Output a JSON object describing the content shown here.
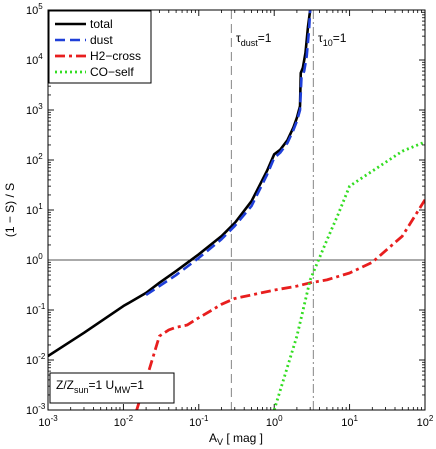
{
  "chart_data": {
    "type": "line",
    "title": "",
    "xlabel": "A",
    "xlabel_sub": "V",
    "xlabel_unit": " [ mag ]",
    "ylabel": "(1 − S) / S",
    "xscale": "log",
    "yscale": "log",
    "xlim": [
      0.001,
      100
    ],
    "ylim": [
      0.001,
      100000
    ],
    "x_tick_values": [
      0.001,
      0.01,
      0.1,
      1,
      10,
      100
    ],
    "x_tick_exponents": [
      "-3",
      "-2",
      "-1",
      "0",
      "1",
      "2"
    ],
    "y_tick_values": [
      0.001,
      0.01,
      0.1,
      1,
      10,
      100,
      1000,
      10000,
      100000
    ],
    "y_tick_exponents": [
      "-3",
      "-2",
      "-1",
      "0",
      "1",
      "2",
      "3",
      "4",
      "5"
    ],
    "tick_base": "10",
    "legend_position": "top-left",
    "series": [
      {
        "name": "total",
        "color": "#000000",
        "style": "solid",
        "x": [
          0.001,
          0.003,
          0.01,
          0.02,
          0.03,
          0.05,
          0.1,
          0.2,
          0.3,
          0.5,
          0.8,
          1.0,
          1.2,
          1.5,
          1.8,
          2.0,
          2.2,
          2.25,
          2.4,
          2.6,
          2.8,
          3.0
        ],
        "y": [
          0.012,
          0.035,
          0.12,
          0.22,
          0.35,
          0.6,
          1.3,
          3.0,
          5.5,
          15,
          60,
          130,
          160,
          250,
          450,
          700,
          1200,
          5500,
          7000,
          14000,
          45000,
          100000
        ]
      },
      {
        "name": "dust",
        "color": "#1f3fd8",
        "style": "dashed",
        "x": [
          0.02,
          0.03,
          0.05,
          0.1,
          0.2,
          0.3,
          0.5,
          0.8,
          1.0,
          1.2,
          1.5,
          1.8,
          2.0,
          2.2,
          2.3,
          2.5,
          2.7,
          2.9,
          3.0
        ],
        "y": [
          0.2,
          0.3,
          0.5,
          1.1,
          2.6,
          4.8,
          12,
          50,
          110,
          140,
          220,
          400,
          600,
          1000,
          4500,
          6000,
          12000,
          40000,
          100000
        ]
      },
      {
        "name": "H2−cross",
        "color": "#e81e1e",
        "style": "dashdot",
        "x": [
          0.015,
          0.02,
          0.03,
          0.04,
          0.05,
          0.07,
          0.1,
          0.15,
          0.2,
          0.3,
          0.5,
          1,
          2,
          3,
          5,
          10,
          20,
          50,
          100
        ],
        "y": [
          0.001,
          0.004,
          0.03,
          0.04,
          0.045,
          0.05,
          0.07,
          0.1,
          0.13,
          0.17,
          0.2,
          0.25,
          0.3,
          0.35,
          0.4,
          0.55,
          0.9,
          3.0,
          16
        ]
      },
      {
        "name": "CO−self",
        "color": "#33dd22",
        "style": "dotted",
        "x": [
          1.0,
          2.0,
          3.0,
          5.0,
          7.0,
          10.0,
          20.0,
          50.0,
          100.0
        ],
        "y": [
          0.001,
          0.03,
          0.4,
          2.5,
          8,
          30,
          60,
          150,
          230
        ]
      }
    ],
    "reference_lines": {
      "horizontal_y": 1,
      "vertical_dashed_x": 0.27,
      "vertical_dashdot_x": 3.3
    },
    "annotations": {
      "tau_dust": {
        "base": "τ",
        "sub": "dust",
        "rest": "=1",
        "x": 0.27
      },
      "tau_10": {
        "base": "τ",
        "sub": "10",
        "rest": "=1",
        "x": 3.3
      },
      "condition": {
        "part1": "Z/Z",
        "sub1": "sun",
        "part2": "=1 U",
        "sub2": "MW",
        "part3": "=1"
      }
    }
  }
}
